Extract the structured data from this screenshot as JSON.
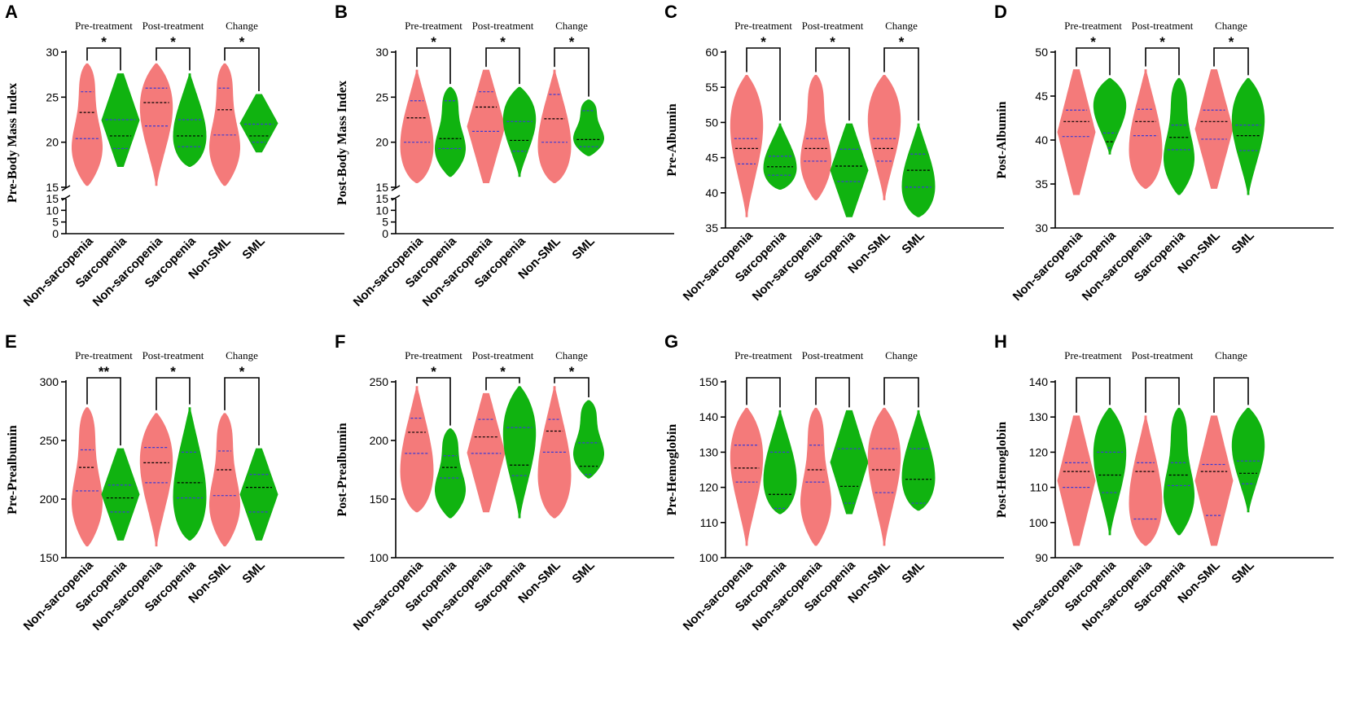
{
  "colors": {
    "non_sarcopenia": "#f47a7a",
    "sarcopenia": "#10b310",
    "median_line": "#000000",
    "quartile_line": "#3b3bd6"
  },
  "group_labels": [
    "Pre-treatment",
    "Post-treatment",
    "Change"
  ],
  "chart_data": [
    {
      "panel": "A",
      "type": "violin",
      "ylabel": "Pre-Body Mass Index",
      "broken_axis": true,
      "ylim": [
        15,
        30
      ],
      "yticks": [
        15,
        20,
        25,
        30
      ],
      "lower_ylim": [
        0,
        15
      ],
      "lower_yticks": [
        0,
        5,
        10,
        15
      ],
      "categories": [
        "Non-sarcopenia",
        "Sarcopenia",
        "Non-sarcopenia",
        "Sarcopenia",
        "Non-SML",
        "SML"
      ],
      "significance": [
        "*",
        "*",
        "*"
      ],
      "violins": [
        {
          "min": 15.2,
          "q1": 20.4,
          "median": 23.3,
          "q3": 25.6,
          "max": 28.7
        },
        {
          "min": 17.3,
          "q1": 19.3,
          "median": 20.7,
          "q3": 22.5,
          "max": 27.6
        },
        {
          "min": 15.2,
          "q1": 21.8,
          "median": 24.4,
          "q3": 26.0,
          "max": 28.7
        },
        {
          "min": 17.3,
          "q1": 19.5,
          "median": 20.7,
          "q3": 22.5,
          "max": 27.6
        },
        {
          "min": 15.2,
          "q1": 20.8,
          "median": 23.6,
          "q3": 26.0,
          "max": 28.7
        },
        {
          "min": 18.9,
          "q1": 20.0,
          "median": 20.7,
          "q3": 22.0,
          "max": 25.3
        }
      ]
    },
    {
      "panel": "B",
      "type": "violin",
      "ylabel": "Post-Body Mass Index",
      "broken_axis": true,
      "ylim": [
        15,
        30
      ],
      "yticks": [
        15,
        20,
        25,
        30
      ],
      "lower_ylim": [
        0,
        15
      ],
      "lower_yticks": [
        0,
        5,
        10,
        15
      ],
      "categories": [
        "Non-sarcopenia",
        "Sarcopenia",
        "Non-sarcopenia",
        "Sarcopenia",
        "Non-SML",
        "SML"
      ],
      "significance": [
        "*",
        "*",
        "*"
      ],
      "violins": [
        {
          "min": 15.5,
          "q1": 20.0,
          "median": 22.7,
          "q3": 24.6,
          "max": 28.0
        },
        {
          "min": 16.2,
          "q1": 19.3,
          "median": 20.4,
          "q3": 24.6,
          "max": 26.1
        },
        {
          "min": 15.5,
          "q1": 21.2,
          "median": 23.9,
          "q3": 25.6,
          "max": 28.0
        },
        {
          "min": 16.2,
          "q1": 19.0,
          "median": 20.2,
          "q3": 22.3,
          "max": 26.1
        },
        {
          "min": 15.5,
          "q1": 20.0,
          "median": 22.6,
          "q3": 25.3,
          "max": 28.0
        },
        {
          "min": 18.5,
          "q1": 19.5,
          "median": 20.3,
          "q3": 23.5,
          "max": 24.7
        }
      ]
    },
    {
      "panel": "C",
      "type": "violin",
      "ylabel": "Pre-Albumin",
      "ylim": [
        35,
        60
      ],
      "yticks": [
        35,
        40,
        45,
        50,
        55,
        60
      ],
      "categories": [
        "Non-sarcopenia",
        "Sarcopenia",
        "Non-sarcopenia",
        "Sarcopenia",
        "Non-SML",
        "SML"
      ],
      "significance": [
        "*",
        "*",
        "*"
      ],
      "violins": [
        {
          "min": 36.6,
          "q1": 44.1,
          "median": 46.3,
          "q3": 47.7,
          "max": 56.7
        },
        {
          "min": 40.5,
          "q1": 42.5,
          "median": 43.7,
          "q3": 45.2,
          "max": 49.8
        },
        {
          "min": 39.0,
          "q1": 44.5,
          "median": 46.3,
          "q3": 47.7,
          "max": 56.7
        },
        {
          "min": 36.6,
          "q1": 41.6,
          "median": 43.8,
          "q3": 46.2,
          "max": 49.8
        },
        {
          "min": 39.0,
          "q1": 44.5,
          "median": 46.3,
          "q3": 47.7,
          "max": 56.7
        },
        {
          "min": 36.6,
          "q1": 40.8,
          "median": 43.2,
          "q3": 45.5,
          "max": 49.8
        }
      ]
    },
    {
      "panel": "D",
      "type": "violin",
      "ylabel": "Post-Albumin",
      "ylim": [
        30,
        50
      ],
      "yticks": [
        30,
        35,
        40,
        45,
        50
      ],
      "categories": [
        "Non-sarcopenia",
        "Sarcopenia",
        "Non-sarcopenia",
        "Sarcopenia",
        "Non-SML",
        "SML"
      ],
      "significance": [
        "*",
        "*",
        "*"
      ],
      "violins": [
        {
          "min": 33.8,
          "q1": 40.4,
          "median": 42.1,
          "q3": 43.4,
          "max": 48.0
        },
        {
          "min": 38.4,
          "q1": 39.1,
          "median": 39.8,
          "q3": 40.8,
          "max": 47.0
        },
        {
          "min": 34.5,
          "q1": 40.5,
          "median": 42.1,
          "q3": 43.5,
          "max": 48.0
        },
        {
          "min": 33.8,
          "q1": 38.9,
          "median": 40.3,
          "q3": 41.7,
          "max": 47.0
        },
        {
          "min": 34.5,
          "q1": 40.1,
          "median": 42.1,
          "q3": 43.4,
          "max": 48.0
        },
        {
          "min": 33.8,
          "q1": 38.8,
          "median": 40.5,
          "q3": 41.7,
          "max": 47.0
        }
      ]
    },
    {
      "panel": "E",
      "type": "violin",
      "ylabel": "Pre-Prealbumin",
      "ylim": [
        150,
        300
      ],
      "yticks": [
        150,
        200,
        250,
        300
      ],
      "categories": [
        "Non-sarcopenia",
        "Sarcopenia",
        "Non-sarcopenia",
        "Sarcopenia",
        "Non-SML",
        "SML"
      ],
      "significance": [
        "**",
        "*",
        "*"
      ],
      "violins": [
        {
          "min": 160,
          "q1": 207,
          "median": 227,
          "q3": 242,
          "max": 278
        },
        {
          "min": 165,
          "q1": 189,
          "median": 201,
          "q3": 212,
          "max": 243
        },
        {
          "min": 160,
          "q1": 214,
          "median": 231,
          "q3": 244,
          "max": 273
        },
        {
          "min": 165,
          "q1": 201,
          "median": 214,
          "q3": 240,
          "max": 278
        },
        {
          "min": 160,
          "q1": 203,
          "median": 225,
          "q3": 241,
          "max": 273
        },
        {
          "min": 165,
          "q1": 189,
          "median": 210,
          "q3": 221,
          "max": 243
        }
      ]
    },
    {
      "panel": "F",
      "type": "violin",
      "ylabel": "Post-Prealbumin",
      "ylim": [
        100,
        250
      ],
      "yticks": [
        100,
        150,
        200,
        250
      ],
      "categories": [
        "Non-sarcopenia",
        "Sarcopenia",
        "Non-sarcopenia",
        "Sarcopenia",
        "Non-SML",
        "SML"
      ],
      "significance": [
        "*",
        "*",
        "*"
      ],
      "violins": [
        {
          "min": 139,
          "q1": 189,
          "median": 207,
          "q3": 219,
          "max": 246
        },
        {
          "min": 134,
          "q1": 168,
          "median": 177,
          "q3": 187,
          "max": 210
        },
        {
          "min": 139,
          "q1": 189,
          "median": 203,
          "q3": 218,
          "max": 240
        },
        {
          "min": 134,
          "q1": 170,
          "median": 179,
          "q3": 211,
          "max": 246
        },
        {
          "min": 134,
          "q1": 190,
          "median": 208,
          "q3": 218,
          "max": 246
        },
        {
          "min": 168,
          "q1": 171,
          "median": 178,
          "q3": 198,
          "max": 234
        }
      ]
    },
    {
      "panel": "G",
      "type": "violin",
      "ylabel": "Pre-Hemoglobin",
      "ylim": [
        100,
        150
      ],
      "yticks": [
        100,
        110,
        120,
        130,
        140,
        150
      ],
      "categories": [
        "Non-sarcopenia",
        "Sarcopenia",
        "Non-sarcopenia",
        "Sarcopenia",
        "Non-SML",
        "SML"
      ],
      "significance": [
        "",
        "",
        ""
      ],
      "violins": [
        {
          "min": 103.5,
          "q1": 121.5,
          "median": 125.5,
          "q3": 132.0,
          "max": 142.5
        },
        {
          "min": 112.5,
          "q1": 114.0,
          "median": 118.0,
          "q3": 130.0,
          "max": 141.8
        },
        {
          "min": 103.5,
          "q1": 121.5,
          "median": 125.0,
          "q3": 132.0,
          "max": 142.5
        },
        {
          "min": 112.5,
          "q1": 115.5,
          "median": 120.3,
          "q3": 131.0,
          "max": 141.8
        },
        {
          "min": 103.5,
          "q1": 118.5,
          "median": 125.0,
          "q3": 131.0,
          "max": 142.5
        },
        {
          "min": 113.5,
          "q1": 115.5,
          "median": 122.3,
          "q3": 131.0,
          "max": 141.8
        }
      ]
    },
    {
      "panel": "H",
      "type": "violin",
      "ylabel": "Post-Hemoglobin",
      "ylim": [
        90,
        140
      ],
      "yticks": [
        90,
        100,
        110,
        120,
        130,
        140
      ],
      "categories": [
        "Non-sarcopenia",
        "Sarcopenia",
        "Non-sarcopenia",
        "Sarcopenia",
        "Non-SML",
        "SML"
      ],
      "significance": [
        "",
        "",
        ""
      ],
      "violins": [
        {
          "min": 93.5,
          "q1": 110.0,
          "median": 114.5,
          "q3": 117.0,
          "max": 130.3
        },
        {
          "min": 96.5,
          "q1": 108.5,
          "median": 113.5,
          "q3": 120.0,
          "max": 132.5
        },
        {
          "min": 93.5,
          "q1": 101.0,
          "median": 114.5,
          "q3": 117.0,
          "max": 130.3
        },
        {
          "min": 96.5,
          "q1": 110.5,
          "median": 113.5,
          "q3": 117.0,
          "max": 132.5
        },
        {
          "min": 93.5,
          "q1": 102.0,
          "median": 114.5,
          "q3": 116.5,
          "max": 130.3
        },
        {
          "min": 103.0,
          "q1": 111.0,
          "median": 114.0,
          "q3": 117.5,
          "max": 132.5
        }
      ]
    }
  ]
}
